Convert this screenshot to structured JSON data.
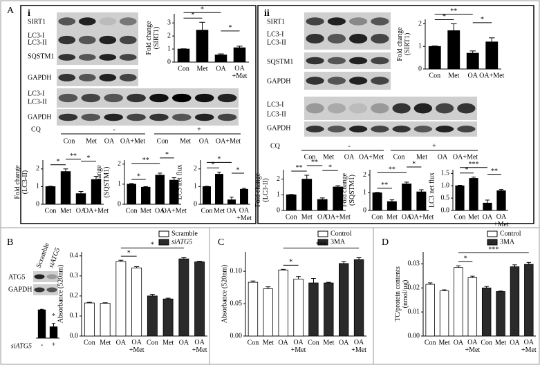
{
  "panels": {
    "A": "A",
    "i": "i",
    "ii": "ii",
    "B": "B",
    "C": "C",
    "D": "D"
  },
  "blots": {
    "i": {
      "rows": [
        "SIRT1",
        "LC3-I",
        "LC3-II",
        "SQSTM1",
        "GAPDH",
        "LC3-I",
        "LC3-II",
        "GAPDH"
      ],
      "cq": "CQ",
      "minus": "-",
      "plus": "+",
      "lanes": [
        "Con",
        "Met",
        "OA",
        "OA+Met",
        "Con",
        "Met",
        "OA",
        "OA+Met"
      ]
    },
    "ii": {
      "rows": [
        "SIRT1",
        "LC3-I",
        "LC3-II",
        "SQSTM1",
        "GAPDH",
        "LC3-I",
        "LC3-II",
        "GAPDH"
      ],
      "cq": "CQ",
      "minus": "-",
      "plus": "+",
      "lanes": [
        "Con",
        "Met",
        "OA",
        "OA+Met",
        "Con",
        "Met",
        "OA",
        "OA+Met"
      ]
    },
    "B": {
      "rows": [
        "ATG5",
        "GAPDH"
      ],
      "lanes": [
        "Scramble",
        "siATG5"
      ]
    }
  },
  "chart_data": [
    {
      "type": "bar",
      "ylabel": "Fold change\n(SIRT1)",
      "categories": [
        "Con",
        "Met",
        "OA",
        "OA\n+Met"
      ],
      "values": [
        1,
        2.45,
        0.55,
        1.1
      ],
      "errors": [
        0.02,
        0.6,
        0.08,
        0.12
      ],
      "color": "#000000",
      "ylim": [
        0,
        3.7
      ],
      "yticks": [
        0,
        1,
        2,
        3
      ],
      "annotations": [
        {
          "text": "*",
          "pair": [
            0,
            1
          ]
        },
        {
          "text": "*",
          "pair": [
            0,
            2
          ]
        },
        {
          "text": "*",
          "pair": [
            2,
            3
          ]
        }
      ]
    },
    {
      "type": "bar",
      "ylabel": "Fold change\n(LC3-II)",
      "categories": [
        "Con",
        "Met",
        "OA",
        "OA+Met"
      ],
      "values": [
        1,
        1.85,
        0.6,
        1.4
      ],
      "errors": [
        0.02,
        0.15,
        0.12,
        0.18
      ],
      "color": "#000000",
      "ylim": [
        0,
        2.5
      ],
      "yticks": [
        0,
        1,
        2
      ],
      "annotations": [
        {
          "text": "*",
          "pair": [
            0,
            1
          ]
        },
        {
          "text": "**",
          "pair": [
            1,
            2
          ]
        },
        {
          "text": "*",
          "pair": [
            2,
            3
          ]
        }
      ]
    },
    {
      "type": "bar",
      "ylabel": "Fold change\n(SQSTM1)",
      "categories": [
        "Con",
        "Met",
        "OA",
        "OA+Met"
      ],
      "values": [
        1,
        0.85,
        1.45,
        1.2
      ],
      "errors": [
        0.03,
        0.03,
        0.1,
        0.12
      ],
      "color": "#000000",
      "ylim": [
        0,
        2.2
      ],
      "yticks": [
        0,
        1,
        2
      ],
      "annotations": [
        {
          "text": "*",
          "pair": [
            0,
            1
          ]
        },
        {
          "text": "**",
          "pair": [
            0,
            2
          ]
        },
        {
          "text": "*",
          "pair": [
            2,
            3
          ]
        }
      ]
    },
    {
      "type": "bar",
      "ylabel": "LC3 net flux",
      "categories": [
        "Con",
        "Met",
        "OA",
        "OA\n+Met"
      ],
      "values": [
        1,
        1.7,
        0.25,
        0.85
      ],
      "errors": [
        0.02,
        0.12,
        0.15,
        0.05
      ],
      "color": "#000000",
      "ylim": [
        0,
        2.5
      ],
      "yticks": [
        0,
        1,
        2
      ],
      "annotations": [
        {
          "text": "*",
          "pair": [
            0,
            1
          ]
        },
        {
          "text": "*",
          "pair": [
            0,
            2
          ]
        },
        {
          "text": "*",
          "pair": [
            2,
            3
          ]
        }
      ]
    },
    {
      "type": "bar",
      "ylabel": "Fold change\n(SIRT1)",
      "categories": [
        "Con",
        "Met",
        "OA",
        "OA+Met"
      ],
      "values": [
        1,
        1.7,
        0.7,
        1.2
      ],
      "errors": [
        0.02,
        0.3,
        0.1,
        0.18
      ],
      "color": "#000000",
      "ylim": [
        0,
        2.2
      ],
      "yticks": [
        0,
        1,
        2
      ],
      "annotations": [
        {
          "text": "*",
          "pair": [
            0,
            1
          ]
        },
        {
          "text": "**",
          "pair": [
            0,
            2
          ]
        },
        {
          "text": "*",
          "pair": [
            2,
            3
          ]
        }
      ]
    },
    {
      "type": "bar",
      "ylabel": "Fold change\n(LC3-II)",
      "categories": [
        "Con",
        "Met",
        "OA",
        "OA+Met"
      ],
      "values": [
        1,
        2,
        0.7,
        1.5
      ],
      "errors": [
        0.02,
        0.25,
        0.1,
        0.08
      ],
      "color": "#000000",
      "ylim": [
        0,
        2.6
      ],
      "yticks": [
        0,
        1,
        2
      ],
      "annotations": [
        {
          "text": "**",
          "pair": [
            0,
            1
          ]
        },
        {
          "text": "**",
          "pair": [
            1,
            2
          ]
        },
        {
          "text": "*",
          "pair": [
            2,
            3
          ]
        }
      ]
    },
    {
      "type": "bar",
      "ylabel": "Fold change\n(SQSTM1)",
      "categories": [
        "Con",
        "Met",
        "OA",
        "OA+Met"
      ],
      "values": [
        1,
        0.5,
        1.5,
        1.05
      ],
      "errors": [
        0.02,
        0.1,
        0.1,
        0.12
      ],
      "color": "#000000",
      "ylim": [
        0,
        2.3
      ],
      "yticks": [
        0,
        1,
        2
      ],
      "annotations": [
        {
          "text": "**",
          "pair": [
            0,
            1
          ]
        },
        {
          "text": "**",
          "pair": [
            0,
            2
          ]
        },
        {
          "text": "*",
          "pair": [
            2,
            3
          ]
        }
      ]
    },
    {
      "type": "bar",
      "ylabel": "LC3 net flux",
      "categories": [
        "Con",
        "Met",
        "OA",
        "OA\n+Met"
      ],
      "values": [
        1,
        1.3,
        0.3,
        0.8
      ],
      "errors": [
        0.02,
        0.05,
        0.12,
        0.05
      ],
      "color": "#000000",
      "ylim": [
        0,
        1.65
      ],
      "yticks": [
        {
          "value": 0,
          "label": "0.0"
        },
        {
          "value": 0.5,
          "label": "0.5"
        },
        {
          "value": 1,
          "label": "1.0"
        },
        {
          "value": 1.5,
          "label": "1.5"
        }
      ],
      "annotations": [
        {
          "text": "*",
          "pair": [
            0,
            1
          ]
        },
        {
          "text": "***",
          "pair": [
            0,
            2
          ]
        },
        {
          "text": "**",
          "pair": [
            2,
            3
          ]
        }
      ]
    },
    {
      "type": "bar",
      "xlabel": "siATG5",
      "categories": [
        "-",
        "+"
      ],
      "values": [
        1,
        0.4
      ],
      "errors": [
        0.02,
        0.12
      ],
      "color": "#000000",
      "ylim": [
        0,
        1.1
      ],
      "annotations": [
        {
          "text": "*",
          "pair": [
            1,
            1
          ]
        }
      ]
    },
    {
      "type": "bar",
      "ylabel": "Absorbance (520nm)",
      "categories": [
        "Con",
        "Met",
        "OA",
        "OA\n+Met",
        "Con",
        "Met",
        "OA",
        "OA\n+Met"
      ],
      "series": [
        {
          "name": "Scramble",
          "color": "#ffffff",
          "values": [
            0.165,
            0.163,
            0.372,
            0.34,
            null,
            null,
            null,
            null
          ],
          "errors": [
            0.003,
            0.003,
            0.006,
            0.006,
            null,
            null,
            null,
            null
          ]
        },
        {
          "name": "siATG5",
          "color": "#2a2a2a",
          "values": [
            null,
            null,
            null,
            null,
            0.2,
            0.185,
            0.385,
            0.37
          ],
          "errors": [
            null,
            null,
            null,
            null,
            0.008,
            0.004,
            0.006,
            0.003
          ]
        }
      ],
      "ylim": [
        0,
        0.42
      ],
      "yticks": [
        {
          "value": 0,
          "label": "0.0"
        },
        {
          "value": 0.1,
          "label": "0.1"
        },
        {
          "value": 0.2,
          "label": "0.2"
        },
        {
          "value": 0.3,
          "label": "0.3"
        },
        {
          "value": 0.4,
          "label": "0.4"
        }
      ],
      "annotations": [
        {
          "text": "*",
          "pair": [
            2,
            3
          ]
        },
        {
          "text": "*",
          "pair": [
            2,
            6
          ]
        }
      ]
    },
    {
      "type": "bar",
      "ylabel": "Absorbance (520nm)",
      "categories": [
        "Con",
        "Met",
        "OA",
        "OA\n+Met",
        "Con",
        "Met",
        "OA",
        "OA\n+Met"
      ],
      "series": [
        {
          "name": "Control",
          "color": "#ffffff",
          "values": [
            0.083,
            0.073,
            0.102,
            0.088,
            null,
            null,
            null,
            null
          ],
          "errors": [
            0.002,
            0.003,
            0.001,
            0.004,
            null,
            null,
            null,
            null
          ]
        },
        {
          "name": "3MA",
          "color": "#2a2a2a",
          "values": [
            null,
            null,
            null,
            null,
            0.082,
            0.082,
            0.112,
            0.118
          ],
          "errors": [
            null,
            null,
            null,
            null,
            0.007,
            0.001,
            0.003,
            0.003
          ]
        }
      ],
      "ylim": [
        0,
        0.13
      ],
      "yticks": [
        {
          "value": 0,
          "label": "0.00"
        },
        {
          "value": 0.05,
          "label": "0.05"
        },
        {
          "value": 0.1,
          "label": "0.10"
        }
      ],
      "annotations": [
        {
          "text": "*",
          "pair": [
            2,
            3
          ]
        },
        {
          "text": "***",
          "pair": [
            2,
            7
          ]
        }
      ]
    },
    {
      "type": "bar",
      "ylabel": "TC/protein contents\n(nmol/µg)",
      "categories": [
        "Con",
        "Met",
        "OA",
        "OA\n+Met",
        "Con",
        "Met",
        "OA",
        "OA\n+Met"
      ],
      "series": [
        {
          "name": "Control",
          "color": "#ffffff",
          "values": [
            0.0215,
            0.0188,
            0.0285,
            0.0243,
            null,
            null,
            null,
            null
          ],
          "errors": [
            0.0006,
            0.0004,
            0.0007,
            0.0006,
            null,
            null,
            null,
            null
          ]
        },
        {
          "name": "3MA",
          "color": "#2a2a2a",
          "values": [
            null,
            null,
            null,
            null,
            0.02,
            0.0185,
            0.0288,
            0.0298
          ],
          "errors": [
            null,
            null,
            null,
            null,
            0.0006,
            0.0002,
            0.0008,
            0.0008
          ]
        }
      ],
      "ylim": [
        0,
        0.035
      ],
      "yticks": [
        {
          "value": 0,
          "label": "0.00"
        },
        {
          "value": 0.01,
          "label": "0.01"
        },
        {
          "value": 0.02,
          "label": "0.02"
        },
        {
          "value": 0.03,
          "label": "0.03"
        }
      ],
      "annotations": [
        {
          "text": "*",
          "pair": [
            2,
            3
          ]
        },
        {
          "text": "***",
          "pair": [
            2,
            7
          ]
        }
      ]
    }
  ]
}
